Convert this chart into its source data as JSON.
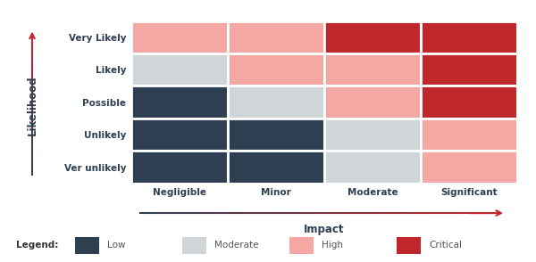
{
  "rows": [
    "Very Likely",
    "Likely",
    "Possible",
    "Unlikely",
    "Ver unlikely"
  ],
  "cols": [
    "Negligible",
    "Minor",
    "Moderate",
    "Significant"
  ],
  "colors": [
    [
      "#F4A7A3",
      "#F4A7A3",
      "#C0272D",
      "#C0272D"
    ],
    [
      "#D0D5D8",
      "#F4A7A3",
      "#F4A7A3",
      "#C0272D"
    ],
    [
      "#2E3F52",
      "#D0D5D8",
      "#F4A7A3",
      "#C0272D"
    ],
    [
      "#2E3F52",
      "#2E3F52",
      "#D0D5D8",
      "#F4A7A3"
    ],
    [
      "#2E3F52",
      "#2E3F52",
      "#D0D5D8",
      "#F4A7A3"
    ]
  ],
  "legend_colors": [
    "#2E3F52",
    "#D0D5D8",
    "#F4A7A3",
    "#C0272D"
  ],
  "legend_labels": [
    "Low",
    "Moderate",
    "High",
    "Critical"
  ],
  "xlabel": "Impact",
  "ylabel": "Likelihood",
  "bg_color": "#FFFFFF",
  "cell_edge_color": "#FFFFFF",
  "row_label_color": "#2E3F52",
  "col_label_color": "#2E3F52",
  "axis_label_color": "#2E3F52",
  "legend_label_color": "#555555"
}
